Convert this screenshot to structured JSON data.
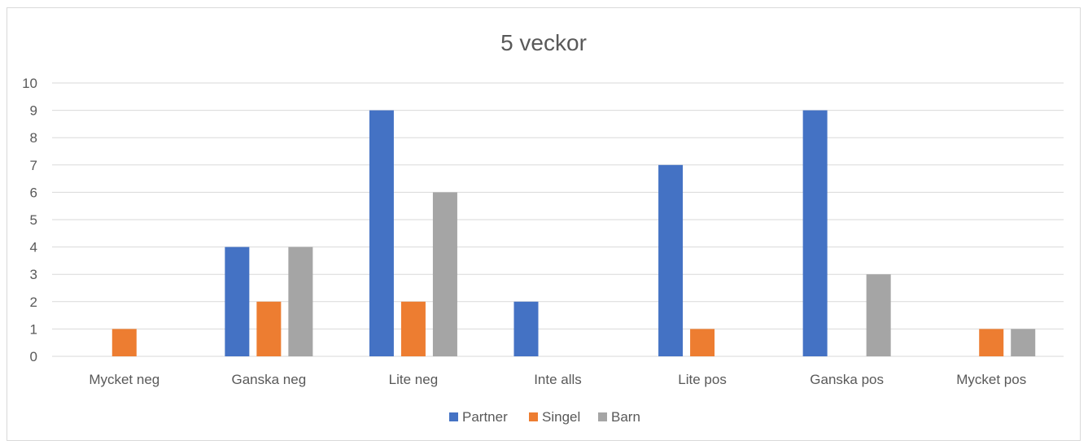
{
  "chart_data": {
    "type": "bar",
    "title": "5 veckor",
    "categories": [
      "Mycket neg",
      "Ganska neg",
      "Lite neg",
      "Inte alls",
      "Lite pos",
      "Ganska pos",
      "Mycket pos"
    ],
    "series": [
      {
        "name": "Partner",
        "color": "#4472c4",
        "values": [
          0,
          4,
          9,
          2,
          7,
          9,
          0
        ]
      },
      {
        "name": "Singel",
        "color": "#ed7d31",
        "values": [
          1,
          2,
          2,
          0,
          1,
          0,
          1
        ]
      },
      {
        "name": "Barn",
        "color": "#a5a5a5",
        "values": [
          0,
          4,
          6,
          0,
          0,
          3,
          1
        ]
      }
    ],
    "ylim": [
      0,
      10
    ],
    "yticks": [
      0,
      1,
      2,
      3,
      4,
      5,
      6,
      7,
      8,
      9,
      10
    ],
    "grid": true,
    "legend": "bottom"
  }
}
